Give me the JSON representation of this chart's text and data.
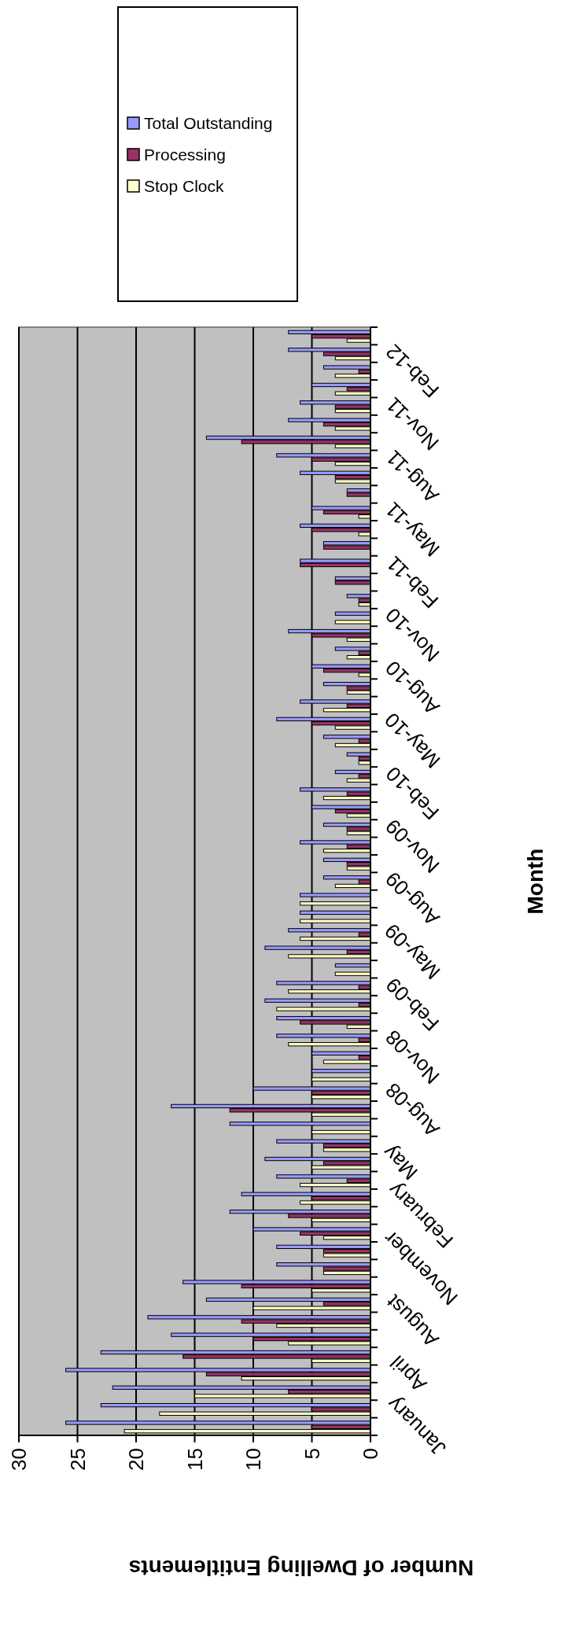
{
  "chart_data": {
    "type": "bar",
    "orientation": "horizontal",
    "xlabel": "Number of Dwelling Entitlements",
    "ylabel": "Month",
    "categories": [
      null,
      null,
      "Feb-12",
      null,
      null,
      "Nov-11",
      null,
      null,
      "Aug-11",
      null,
      null,
      "May-11",
      null,
      null,
      "Feb-11",
      null,
      null,
      "Nov-10",
      null,
      null,
      "Aug-10",
      null,
      null,
      "May-10",
      null,
      null,
      "Feb-10",
      null,
      null,
      "Nov-09",
      null,
      null,
      "Aug-09",
      null,
      null,
      "May-09",
      null,
      null,
      "Feb-09",
      null,
      null,
      "Nov-08",
      null,
      null,
      "Aug-08",
      null,
      null,
      "May",
      null,
      null,
      "February",
      null,
      null,
      "November",
      null,
      null,
      "August",
      null,
      null,
      "April",
      null,
      null,
      "January"
    ],
    "series": [
      {
        "name": "Total Outstanding",
        "color": "#9999ff",
        "values": [
          7,
          7,
          4,
          5,
          6,
          7,
          14,
          8,
          6,
          2,
          5,
          6,
          4,
          6,
          3,
          2,
          3,
          7,
          3,
          5,
          4,
          6,
          8,
          4,
          2,
          3,
          6,
          5,
          4,
          6,
          4,
          4,
          6,
          6,
          7,
          9,
          3,
          8,
          9,
          8,
          8,
          5,
          5,
          10,
          17,
          12,
          8,
          9,
          8,
          11,
          12,
          10,
          8,
          8,
          16,
          14,
          19,
          17,
          23,
          26,
          22,
          23,
          26
        ]
      },
      {
        "name": "Processing",
        "color": "#993366",
        "values": [
          5,
          4,
          1,
          2,
          3,
          4,
          11,
          5,
          3,
          2,
          4,
          5,
          4,
          6,
          3,
          1,
          0,
          5,
          1,
          4,
          2,
          2,
          5,
          1,
          1,
          1,
          2,
          3,
          2,
          2,
          2,
          1,
          0,
          0,
          1,
          2,
          0,
          1,
          1,
          6,
          1,
          1,
          0,
          5,
          12,
          0,
          4,
          4,
          2,
          5,
          7,
          6,
          4,
          4,
          11,
          4,
          11,
          10,
          16,
          14,
          7,
          5,
          5
        ]
      },
      {
        "name": "Stop Clock",
        "color": "#ffffcc",
        "values": [
          2,
          3,
          3,
          3,
          3,
          3,
          3,
          3,
          3,
          0,
          1,
          1,
          0,
          0,
          0,
          1,
          3,
          2,
          2,
          1,
          2,
          4,
          3,
          3,
          1,
          2,
          4,
          2,
          2,
          4,
          2,
          3,
          6,
          6,
          6,
          7,
          3,
          7,
          8,
          2,
          7,
          4,
          5,
          5,
          5,
          5,
          4,
          5,
          6,
          6,
          5,
          4,
          4,
          4,
          5,
          10,
          8,
          7,
          5,
          11,
          15,
          18,
          21
        ]
      }
    ],
    "xlim": [
      30,
      0
    ],
    "xticks": [
      30,
      25,
      20,
      15,
      10,
      5,
      0
    ],
    "grid": "x",
    "legend": "top right"
  }
}
